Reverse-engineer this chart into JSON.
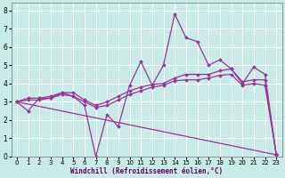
{
  "xlabel": "Windchill (Refroidissement éolien,°C)",
  "xlim": [
    -0.5,
    23.5
  ],
  "ylim": [
    0,
    8.4
  ],
  "xticks": [
    0,
    1,
    2,
    3,
    4,
    5,
    6,
    7,
    8,
    9,
    10,
    11,
    12,
    13,
    14,
    15,
    16,
    17,
    18,
    19,
    20,
    21,
    22,
    23
  ],
  "yticks": [
    0,
    1,
    2,
    3,
    4,
    5,
    6,
    7,
    8
  ],
  "bg_color": "#c8ebe8",
  "line_color": "#993399",
  "grid_color": "#ffffff",
  "line1_x": [
    0,
    1,
    2,
    3,
    4,
    5,
    6,
    7,
    8,
    9,
    10,
    11,
    12,
    13,
    14,
    15,
    16,
    17,
    18,
    19,
    20,
    21,
    22,
    23
  ],
  "line1_y": [
    3.0,
    2.5,
    3.2,
    3.2,
    3.5,
    3.3,
    2.8,
    0.0,
    2.3,
    1.65,
    3.9,
    5.2,
    3.9,
    5.0,
    7.8,
    6.5,
    6.3,
    5.0,
    5.3,
    4.8,
    4.0,
    4.9,
    4.5,
    0.1
  ],
  "line2_x": [
    0,
    1,
    2,
    3,
    4,
    5,
    6,
    7,
    8,
    9,
    10,
    11,
    12,
    13,
    14,
    15,
    16,
    17,
    18,
    19,
    20,
    21,
    22,
    23
  ],
  "line2_y": [
    3.0,
    3.2,
    3.2,
    3.3,
    3.5,
    3.5,
    3.1,
    2.8,
    3.0,
    3.3,
    3.6,
    3.8,
    3.95,
    4.0,
    4.3,
    4.5,
    4.5,
    4.5,
    4.7,
    4.8,
    4.1,
    4.2,
    4.2,
    0.1
  ],
  "line3_x": [
    0,
    1,
    2,
    3,
    4,
    5,
    6,
    7,
    8,
    9,
    10,
    11,
    12,
    13,
    14,
    15,
    16,
    17,
    18,
    19,
    20,
    21,
    22,
    23
  ],
  "line3_y": [
    3.0,
    3.1,
    3.1,
    3.2,
    3.4,
    3.3,
    3.0,
    2.7,
    2.8,
    3.1,
    3.4,
    3.6,
    3.8,
    3.9,
    4.15,
    4.2,
    4.2,
    4.3,
    4.45,
    4.5,
    3.9,
    4.0,
    3.9,
    0.15
  ],
  "line4_x": [
    0,
    23
  ],
  "line4_y": [
    3.0,
    0.1
  ]
}
